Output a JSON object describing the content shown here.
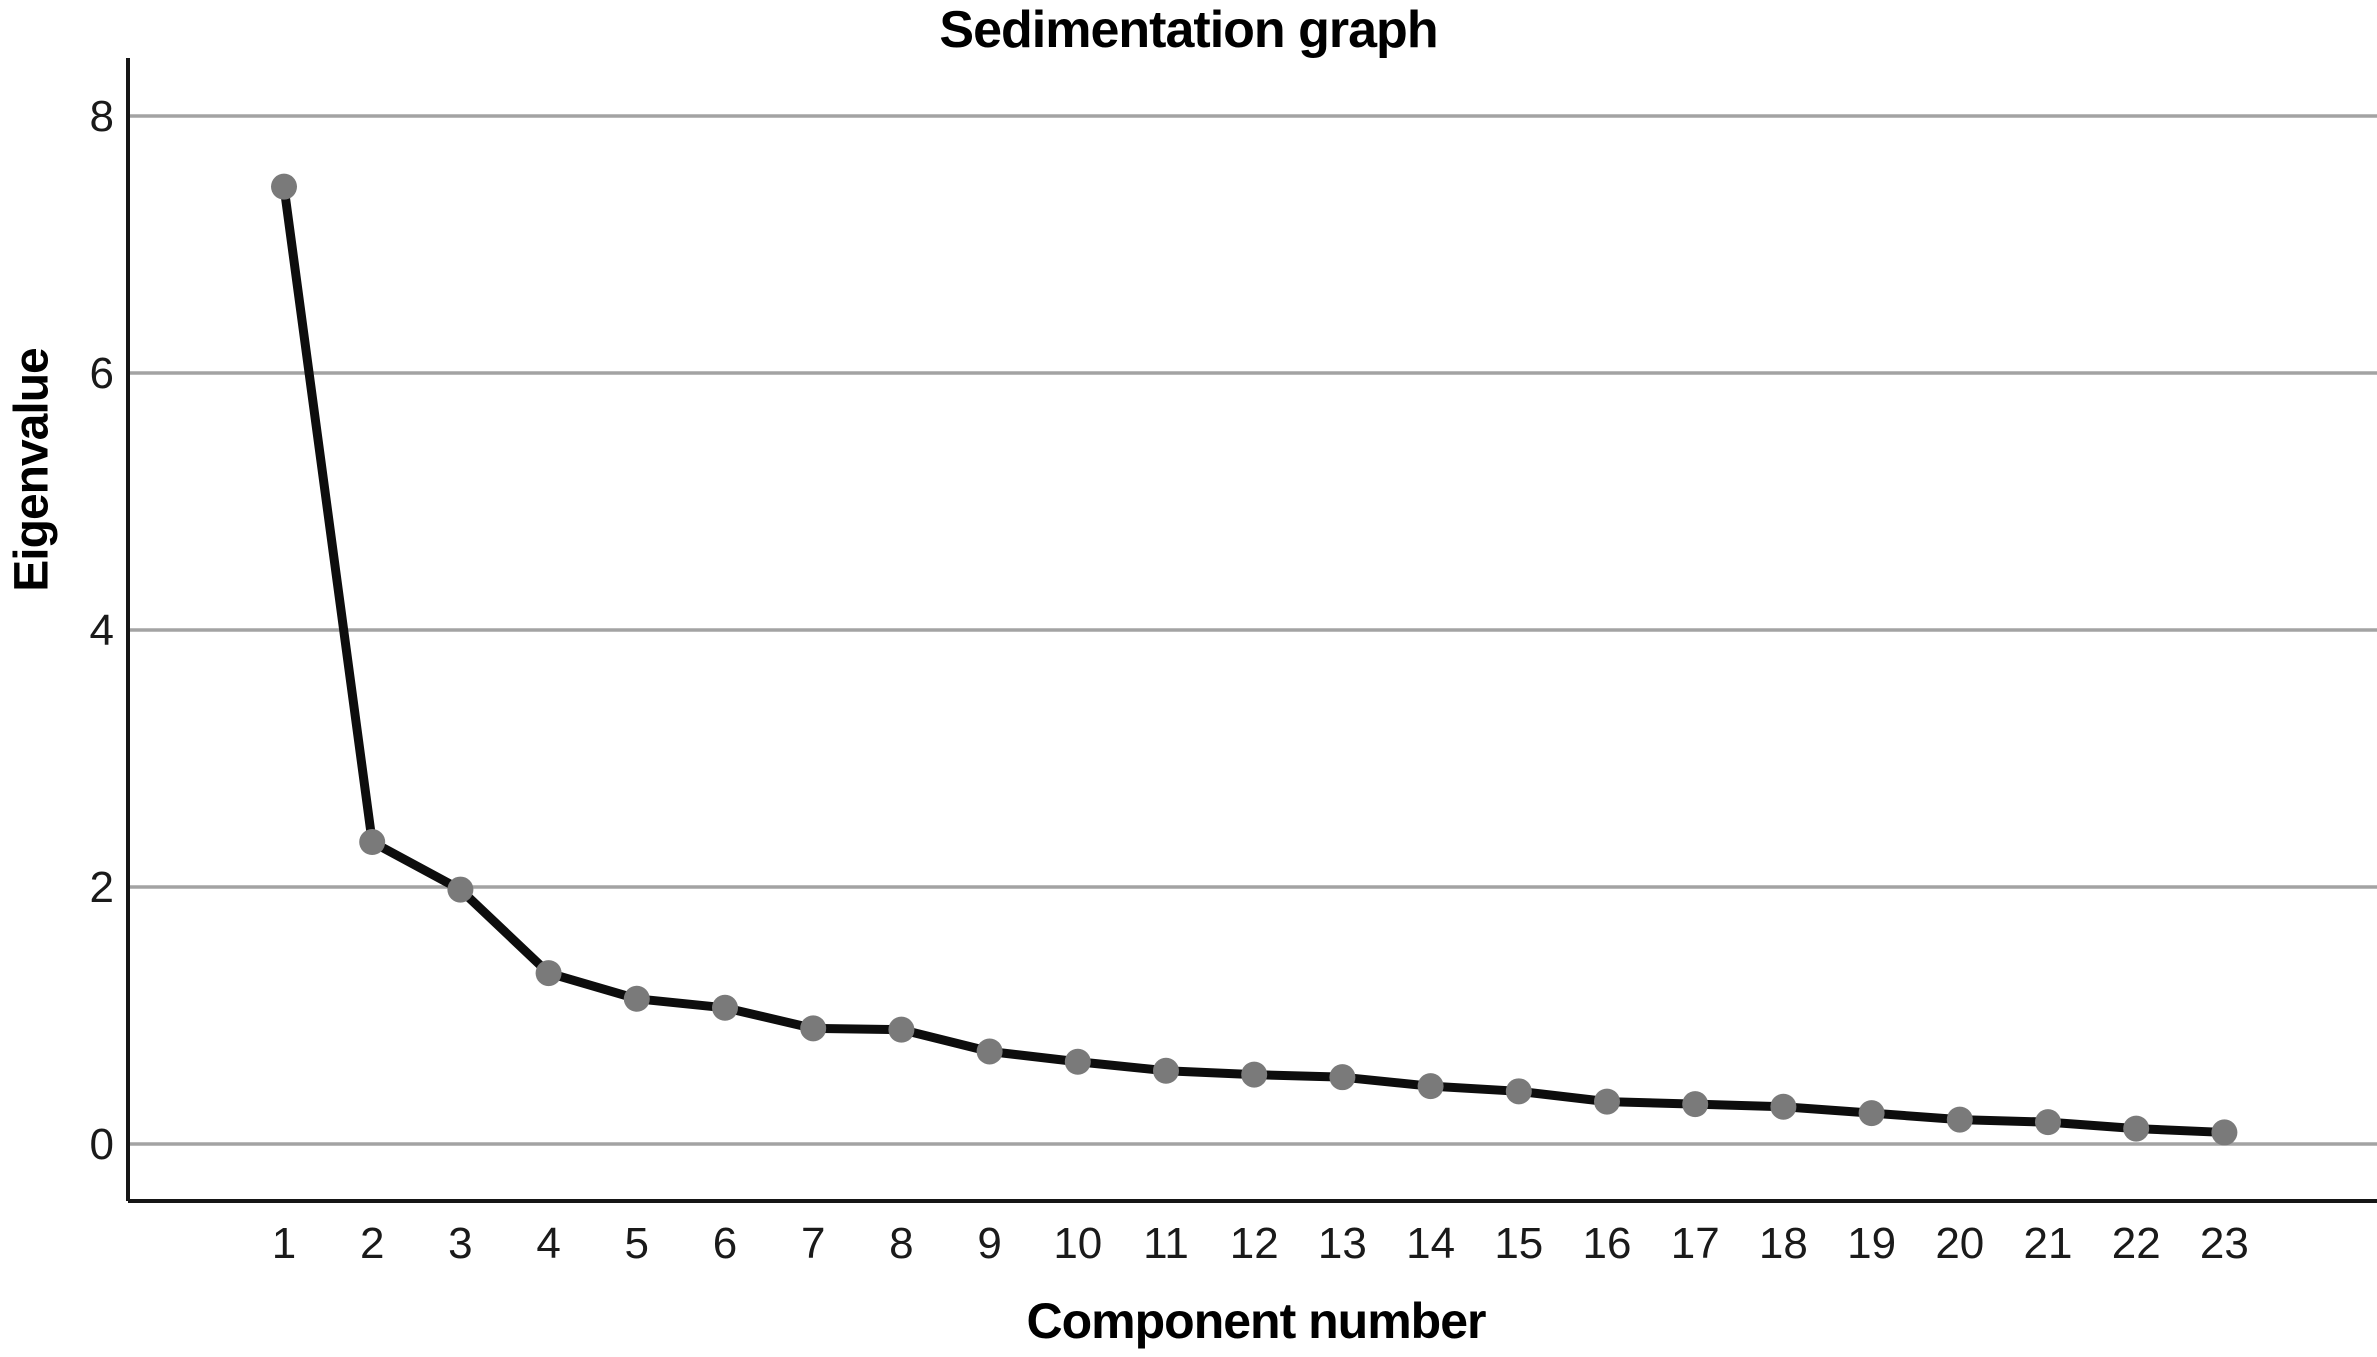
{
  "chart_data": {
    "type": "line",
    "title": "Sedimentation graph",
    "xlabel": "Component number",
    "ylabel": "Eigenvalue",
    "categories": [
      "1",
      "2",
      "3",
      "4",
      "5",
      "6",
      "7",
      "8",
      "9",
      "10",
      "11",
      "12",
      "13",
      "14",
      "15",
      "16",
      "17",
      "18",
      "19",
      "20",
      "21",
      "22",
      "23"
    ],
    "values": [
      7.45,
      2.35,
      1.98,
      1.33,
      1.13,
      1.06,
      0.9,
      0.89,
      0.72,
      0.64,
      0.57,
      0.54,
      0.52,
      0.45,
      0.41,
      0.33,
      0.31,
      0.29,
      0.24,
      0.19,
      0.17,
      0.12,
      0.09
    ],
    "y_ticks": [
      "0",
      "2",
      "4",
      "6",
      "8"
    ],
    "y_tick_values": [
      0,
      2,
      4,
      6,
      8
    ],
    "ylim": [
      -0.44,
      8.45
    ],
    "grid": "horizontal-only",
    "legend": "none",
    "marker": "circle",
    "colors": {
      "line": "#0d0d0d",
      "marker": "#7a7a7a",
      "gridline": "#a3a3a3",
      "axis": "#161616",
      "text": "#000000",
      "background": "#ffffff"
    }
  }
}
